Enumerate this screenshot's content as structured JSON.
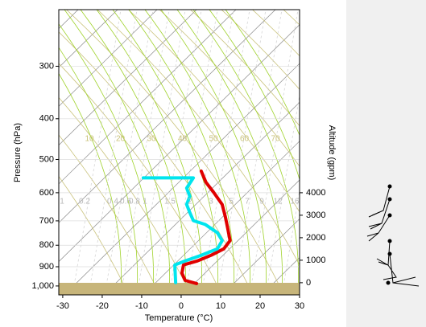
{
  "chart_data": {
    "type": "line",
    "x_label": "Temperature (°C)",
    "y_label": "Pressure (hPa)",
    "y2_label": "Altitude (gpm)",
    "xlim": [
      -31,
      30
    ],
    "xticks": [
      -30,
      -20,
      -10,
      0,
      10,
      20,
      30
    ],
    "ylim": [
      1050,
      220
    ],
    "log_y": true,
    "yticks": [
      300,
      400,
      500,
      600,
      700,
      800,
      900,
      {
        "value": 1000,
        "label": "1,000"
      }
    ],
    "y2lim": [
      -540,
      12140
    ],
    "y2ticks": [
      0,
      1000,
      2000,
      3000,
      4000
    ],
    "adiabat_labels": [
      10,
      20,
      30,
      40,
      50,
      60,
      70
    ],
    "mixing_ratio_labels": [
      "1",
      "0.2",
      "0.4",
      "0.6",
      "0.8",
      "1",
      "1.5",
      "2",
      "3",
      "5",
      "7",
      "9",
      "12",
      "16"
    ],
    "series": [
      {
        "color": "#e00000",
        "x": [
          3.9,
          1.0,
          0.2,
          0.6,
          4.1,
          7.6,
          10.8,
          12.4,
          11.8,
          11.2,
          10.4,
          8.2,
          6.3,
          5.1
        ],
        "values": [
          987,
          970,
          932,
          891,
          872,
          845,
          816,
          780,
          730,
          684,
          640,
          598,
          567,
          533
        ]
      },
      {
        "color": "#00e5ee",
        "x": [
          -1.4,
          -1.6,
          1.0,
          5.1,
          9.2,
          10.4,
          9.2,
          6.1,
          3.1,
          2.2,
          1.4,
          2.2,
          1.4,
          3.1,
          -9.6
        ],
        "values": [
          982,
          891,
          872,
          845,
          816,
          780,
          747,
          714,
          699,
          669,
          640,
          612,
          585,
          553,
          553
        ]
      }
    ]
  }
}
